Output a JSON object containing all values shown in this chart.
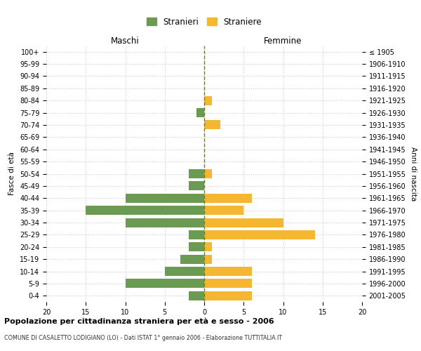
{
  "age_groups": [
    "0-4",
    "5-9",
    "10-14",
    "15-19",
    "20-24",
    "25-29",
    "30-34",
    "35-39",
    "40-44",
    "45-49",
    "50-54",
    "55-59",
    "60-64",
    "65-69",
    "70-74",
    "75-79",
    "80-84",
    "85-89",
    "90-94",
    "95-99",
    "100+"
  ],
  "birth_years": [
    "2001-2005",
    "1996-2000",
    "1991-1995",
    "1986-1990",
    "1981-1985",
    "1976-1980",
    "1971-1975",
    "1966-1970",
    "1961-1965",
    "1956-1960",
    "1951-1955",
    "1946-1950",
    "1941-1945",
    "1936-1940",
    "1931-1935",
    "1926-1930",
    "1921-1925",
    "1916-1920",
    "1911-1915",
    "1906-1910",
    "≤ 1905"
  ],
  "stranieri": [
    2,
    10,
    5,
    3,
    2,
    2,
    10,
    15,
    10,
    2,
    2,
    0,
    0,
    0,
    0,
    1,
    0,
    0,
    0,
    0,
    0
  ],
  "straniere": [
    6,
    6,
    6,
    1,
    1,
    14,
    10,
    5,
    6,
    0,
    1,
    0,
    0,
    0,
    2,
    0,
    1,
    0,
    0,
    0,
    0
  ],
  "color_stranieri": "#6b9a52",
  "color_straniere": "#f5b731",
  "title": "Popolazione per cittadinanza straniera per età e sesso - 2006",
  "subtitle": "COMUNE DI CASALETTO LODIGIANO (LO) - Dati ISTAT 1° gennaio 2006 - Elaborazione TUTTITALIA.IT",
  "xlabel_left": "Maschi",
  "xlabel_right": "Femmine",
  "ylabel_left": "Fasce di età",
  "ylabel_right": "Anni di nascita",
  "xlim": 20,
  "background_color": "#ffffff",
  "grid_color": "#cccccc",
  "legend_stranieri": "Stranieri",
  "legend_straniere": "Straniere"
}
